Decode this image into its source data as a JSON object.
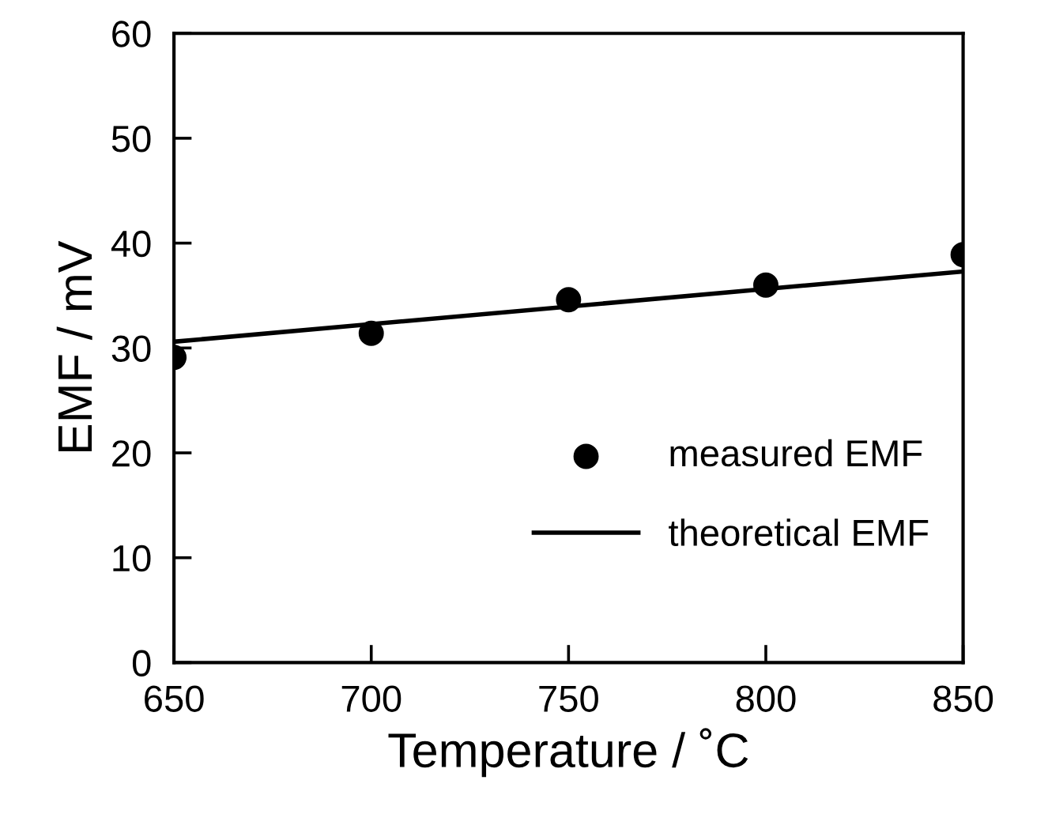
{
  "chart_data": {
    "type": "scatter",
    "xlabel": "Temperature / ˚C",
    "ylabel": "EMF / mV",
    "series": [
      {
        "name": "measured EMF",
        "color": "#000000",
        "marker": "circle",
        "x": [
          650,
          700,
          750,
          800,
          850
        ],
        "values": [
          29.1,
          31.4,
          34.6,
          36.0,
          38.9
        ]
      },
      {
        "name": "theoretical EMF",
        "type": "line",
        "color": "#000000",
        "marker": "none",
        "x": [
          650,
          850
        ],
        "values": [
          30.6,
          37.3
        ]
      }
    ],
    "xlim": [
      650,
      850
    ],
    "ylim": [
      0,
      60
    ],
    "xticks": [
      650,
      700,
      750,
      800,
      850
    ],
    "yticks": [
      0,
      10,
      20,
      30,
      40,
      50,
      60
    ],
    "grid": false,
    "legend": "bottom right"
  }
}
